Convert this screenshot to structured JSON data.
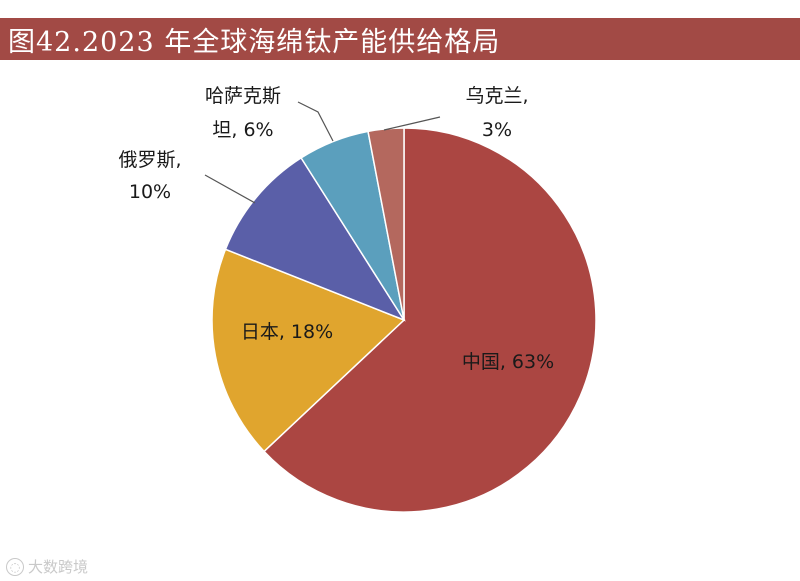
{
  "chart_data": {
    "type": "pie",
    "title": "图42.2023 年全球海绵钛产能供给格局",
    "slices": [
      {
        "label_lines": [
          "中国, 63%"
        ],
        "name": "中国",
        "value": 63,
        "color": "#ab4642"
      },
      {
        "label_lines": [
          "日本, 18%"
        ],
        "name": "日本",
        "value": 18,
        "color": "#e0a52e"
      },
      {
        "label_lines": [
          "俄罗斯,",
          "10%"
        ],
        "name": "俄罗斯",
        "value": 10,
        "color": "#5a5fa8"
      },
      {
        "label_lines": [
          "哈萨克斯",
          "坦, 6%"
        ],
        "name": "哈萨克斯坦",
        "value": 6,
        "color": "#5b9fbd"
      },
      {
        "label_lines": [
          "乌克兰,",
          "3%"
        ],
        "name": "乌克兰",
        "value": 3,
        "color": "#b4685e"
      }
    ]
  },
  "watermark": {
    "text": "大数跨境"
  }
}
